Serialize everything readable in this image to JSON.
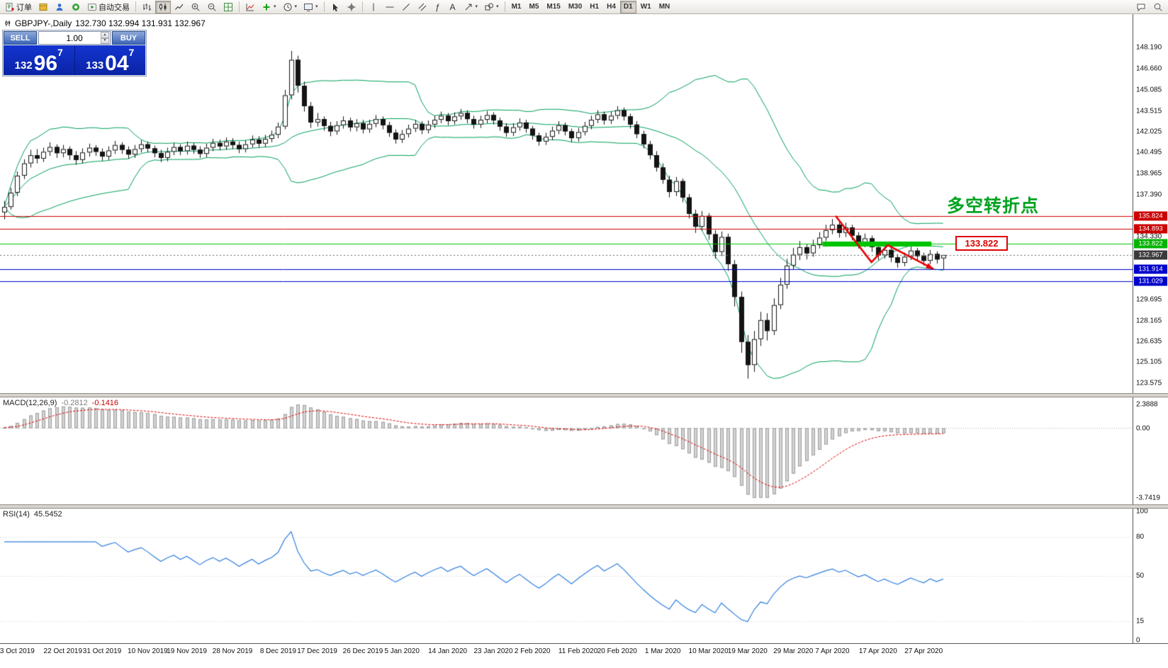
{
  "toolbar": {
    "order_label": "订单",
    "autotrade_label": "自动交易",
    "timeframes": [
      "M1",
      "M5",
      "M15",
      "M30",
      "H1",
      "H4",
      "D1",
      "W1",
      "MN"
    ],
    "active_timeframe": "D1"
  },
  "icons": {
    "caret": "▾",
    "spin_up": "▲",
    "spin_down": "▼",
    "fibo_tool": "ƒ",
    "text_tool": "A"
  },
  "chart": {
    "symbol_title": "GBPJPY-,Daily",
    "ohlc_line": "132.730 132.994 131.931 132.967"
  },
  "one_click": {
    "sell_label": "SELL",
    "buy_label": "BUY",
    "volume": "1.00",
    "bid": {
      "prefix": "132",
      "main": "96",
      "sup": "7"
    },
    "ask": {
      "prefix": "133",
      "main": "04",
      "sup": "7"
    }
  },
  "indicators": {
    "macd": {
      "label": "MACD(12,26,9)",
      "value_main": "-0.2812",
      "value_signal": "-0.1416",
      "fast": 12,
      "slow": 26,
      "signal": 9,
      "axis": [
        "2.3888",
        "0.00",
        "-3.7419"
      ]
    },
    "rsi": {
      "label": "RSI(14)",
      "value": "45.5452",
      "period": 14,
      "axis": [
        "100",
        "80",
        "50",
        "15",
        "0"
      ],
      "levels": [
        80,
        50,
        15
      ]
    }
  },
  "annotations": {
    "turning_point_text": "多空转折点",
    "turning_point_price": 135.824,
    "price_label": "133.822",
    "price_label_price": 133.822,
    "arrow_points": [
      [
        127.5,
        135.85
      ],
      [
        133,
        132.45
      ],
      [
        135.5,
        133.7
      ],
      [
        142.5,
        131.95
      ]
    ]
  },
  "chart_data": {
    "type": "candlestick",
    "symbol": "GBPJPY",
    "period": "Daily",
    "colors": {
      "bands": "#00a05a",
      "candle_up": "#ffffff",
      "candle_down": "#141414",
      "candle_border": "#141414",
      "macd_hist_fill": "#d2d2d2",
      "macd_hist_stroke": "#9e9e9e",
      "macd_signal": "#e00000",
      "rsi_line": "#2f7fde",
      "annotation": "#e60000"
    },
    "y_axis_ticks": [
      148.19,
      146.66,
      145.085,
      143.515,
      142.025,
      140.495,
      138.965,
      137.39,
      134.33,
      129.695,
      128.165,
      126.635,
      125.105,
      123.575
    ],
    "price_lines": [
      {
        "price": 135.824,
        "color": "#cc0000"
      },
      {
        "price": 134.893,
        "color": "#cc0000"
      },
      {
        "price": 133.822,
        "color": "#00c400",
        "segment": [
          125.5,
          142.2
        ],
        "tag_color": "#00b400"
      },
      {
        "price": 132.967,
        "color": "#666666",
        "dashed": true,
        "tag_color": "#3a3a3a"
      },
      {
        "price": 131.914,
        "color": "#0000cc"
      },
      {
        "price": 131.029,
        "color": "#0000cc"
      }
    ],
    "x_axis": [
      {
        "label": "3 Oct 2019",
        "bar": 2
      },
      {
        "label": "22 Oct 2019",
        "bar": 9
      },
      {
        "label": "31 Oct 2019",
        "bar": 15
      },
      {
        "label": "10 Nov 2019",
        "bar": 22
      },
      {
        "label": "19 Nov 2019",
        "bar": 28
      },
      {
        "label": "28 Nov 2019",
        "bar": 35
      },
      {
        "label": "8 Dec 2019",
        "bar": 42
      },
      {
        "label": "17 Dec 2019",
        "bar": 48
      },
      {
        "label": "26 Dec 2019",
        "bar": 55
      },
      {
        "label": "5 Jan 2020",
        "bar": 61
      },
      {
        "label": "14 Jan 2020",
        "bar": 68
      },
      {
        "label": "23 Jan 2020",
        "bar": 75
      },
      {
        "label": "2 Feb 2020",
        "bar": 81
      },
      {
        "label": "11 Feb 2020",
        "bar": 88
      },
      {
        "label": "20 Feb 2020",
        "bar": 94
      },
      {
        "label": "1 Mar 2020",
        "bar": 101
      },
      {
        "label": "10 Mar 2020",
        "bar": 108
      },
      {
        "label": "19 Mar 2020",
        "bar": 114
      },
      {
        "label": "29 Mar 2020",
        "bar": 121
      },
      {
        "label": "7 Apr 2020",
        "bar": 127
      },
      {
        "label": "17 Apr 2020",
        "bar": 134
      },
      {
        "label": "27 Apr 2020",
        "bar": 141
      }
    ],
    "candles": [
      [
        136.1,
        136.95,
        135.6,
        136.5
      ],
      [
        136.5,
        137.9,
        136.3,
        137.55
      ],
      [
        137.55,
        139.1,
        137.3,
        138.8
      ],
      [
        138.8,
        140.0,
        138.55,
        139.7
      ],
      [
        139.7,
        140.7,
        139.4,
        140.3
      ],
      [
        140.3,
        140.75,
        139.7,
        140.05
      ],
      [
        140.05,
        140.85,
        139.8,
        140.55
      ],
      [
        140.55,
        141.25,
        140.25,
        140.9
      ],
      [
        140.9,
        141.1,
        140.1,
        140.45
      ],
      [
        140.45,
        141.05,
        140.15,
        140.75
      ],
      [
        140.75,
        140.95,
        139.95,
        140.3
      ],
      [
        140.3,
        140.6,
        139.6,
        139.95
      ],
      [
        139.95,
        140.8,
        139.7,
        140.5
      ],
      [
        140.5,
        141.15,
        140.2,
        140.85
      ],
      [
        140.85,
        141.05,
        140.25,
        140.55
      ],
      [
        140.55,
        140.8,
        139.9,
        140.2
      ],
      [
        140.2,
        140.95,
        139.95,
        140.65
      ],
      [
        140.65,
        141.35,
        140.4,
        141.05
      ],
      [
        141.05,
        141.25,
        140.4,
        140.7
      ],
      [
        140.7,
        140.95,
        140.05,
        140.35
      ],
      [
        140.35,
        141.05,
        140.1,
        140.75
      ],
      [
        140.75,
        141.4,
        140.5,
        141.1
      ],
      [
        141.1,
        141.3,
        140.5,
        140.8
      ],
      [
        140.8,
        141.0,
        140.15,
        140.45
      ],
      [
        140.45,
        140.7,
        139.8,
        140.1
      ],
      [
        140.1,
        140.85,
        139.85,
        140.55
      ],
      [
        140.55,
        141.2,
        140.3,
        140.9
      ],
      [
        140.9,
        141.1,
        140.3,
        140.6
      ],
      [
        140.6,
        141.3,
        140.35,
        141.0
      ],
      [
        141.0,
        141.2,
        140.4,
        140.7
      ],
      [
        140.7,
        140.95,
        140.1,
        140.4
      ],
      [
        140.4,
        141.15,
        140.15,
        140.85
      ],
      [
        140.85,
        141.5,
        140.6,
        141.2
      ],
      [
        141.2,
        141.45,
        140.65,
        140.95
      ],
      [
        140.95,
        141.6,
        140.7,
        141.3
      ],
      [
        141.3,
        141.55,
        140.75,
        141.05
      ],
      [
        141.05,
        141.3,
        140.45,
        140.75
      ],
      [
        140.75,
        141.4,
        140.5,
        141.1
      ],
      [
        141.1,
        141.75,
        140.85,
        141.45
      ],
      [
        141.45,
        141.7,
        140.85,
        141.15
      ],
      [
        141.15,
        141.8,
        140.9,
        141.5
      ],
      [
        141.5,
        142.1,
        141.25,
        141.8
      ],
      [
        141.8,
        142.7,
        141.55,
        142.4
      ],
      [
        142.4,
        145.1,
        142.2,
        144.7
      ],
      [
        144.7,
        147.96,
        144.4,
        147.3
      ],
      [
        147.3,
        147.6,
        144.9,
        145.4
      ],
      [
        145.4,
        145.7,
        143.5,
        143.9
      ],
      [
        143.9,
        144.2,
        142.3,
        142.7
      ],
      [
        142.7,
        143.4,
        142.4,
        142.95
      ],
      [
        142.95,
        143.15,
        142.1,
        142.45
      ],
      [
        142.45,
        142.75,
        141.7,
        142.05
      ],
      [
        142.05,
        142.8,
        141.8,
        142.5
      ],
      [
        142.5,
        143.15,
        142.25,
        142.85
      ],
      [
        142.85,
        143.05,
        142.05,
        142.35
      ],
      [
        142.35,
        142.95,
        142.05,
        142.65
      ],
      [
        142.65,
        142.9,
        141.9,
        142.2
      ],
      [
        142.2,
        142.9,
        141.95,
        142.6
      ],
      [
        142.6,
        143.25,
        142.35,
        142.95
      ],
      [
        142.95,
        143.15,
        142.2,
        142.5
      ],
      [
        142.5,
        142.75,
        141.65,
        141.95
      ],
      [
        141.95,
        142.2,
        141.15,
        141.45
      ],
      [
        141.45,
        142.15,
        141.2,
        141.85
      ],
      [
        141.85,
        142.55,
        141.6,
        142.25
      ],
      [
        142.25,
        142.9,
        142.0,
        142.6
      ],
      [
        142.6,
        142.8,
        141.85,
        142.15
      ],
      [
        142.15,
        142.85,
        141.9,
        142.55
      ],
      [
        142.55,
        143.2,
        142.3,
        142.9
      ],
      [
        142.9,
        143.5,
        142.65,
        143.2
      ],
      [
        143.2,
        143.4,
        142.5,
        142.8
      ],
      [
        142.8,
        143.45,
        142.55,
        143.15
      ],
      [
        143.15,
        143.7,
        142.9,
        143.4
      ],
      [
        143.4,
        143.6,
        142.65,
        142.95
      ],
      [
        142.95,
        143.2,
        142.25,
        142.55
      ],
      [
        142.55,
        143.2,
        142.3,
        142.9
      ],
      [
        142.9,
        143.55,
        142.65,
        143.25
      ],
      [
        143.25,
        143.45,
        142.55,
        142.85
      ],
      [
        142.85,
        143.05,
        142.1,
        142.4
      ],
      [
        142.4,
        142.65,
        141.65,
        141.95
      ],
      [
        141.95,
        142.65,
        141.7,
        142.35
      ],
      [
        142.35,
        143.0,
        142.1,
        142.7
      ],
      [
        142.7,
        142.9,
        141.95,
        142.25
      ],
      [
        142.25,
        142.45,
        141.45,
        141.75
      ],
      [
        141.75,
        141.95,
        141.0,
        141.3
      ],
      [
        141.3,
        141.95,
        141.05,
        141.65
      ],
      [
        141.65,
        142.4,
        141.4,
        142.1
      ],
      [
        142.1,
        142.8,
        141.85,
        142.5
      ],
      [
        142.5,
        142.7,
        141.75,
        142.05
      ],
      [
        142.05,
        142.25,
        141.25,
        141.55
      ],
      [
        141.55,
        142.3,
        141.3,
        142.0
      ],
      [
        142.0,
        142.75,
        141.75,
        142.45
      ],
      [
        142.45,
        143.2,
        142.2,
        142.9
      ],
      [
        142.9,
        143.6,
        142.65,
        143.3
      ],
      [
        143.3,
        143.5,
        142.55,
        142.85
      ],
      [
        142.85,
        143.5,
        142.6,
        143.2
      ],
      [
        143.2,
        143.9,
        142.95,
        143.6
      ],
      [
        143.6,
        143.8,
        142.85,
        143.15
      ],
      [
        143.15,
        143.35,
        142.25,
        142.55
      ],
      [
        142.55,
        142.8,
        141.55,
        141.85
      ],
      [
        141.85,
        142.1,
        140.8,
        141.1
      ],
      [
        141.1,
        141.35,
        140.0,
        140.3
      ],
      [
        140.3,
        140.6,
        139.1,
        139.4
      ],
      [
        139.4,
        139.7,
        138.2,
        138.5
      ],
      [
        138.5,
        138.8,
        137.2,
        137.6
      ],
      [
        137.6,
        138.7,
        137.3,
        138.4
      ],
      [
        138.4,
        138.6,
        136.85,
        137.2
      ],
      [
        137.2,
        137.45,
        135.65,
        136.0
      ],
      [
        136.0,
        136.3,
        134.6,
        135.05
      ],
      [
        135.05,
        136.2,
        134.75,
        135.85
      ],
      [
        135.85,
        136.05,
        134.1,
        134.5
      ],
      [
        134.5,
        134.8,
        132.7,
        133.2
      ],
      [
        133.2,
        134.7,
        132.9,
        134.3
      ],
      [
        134.3,
        134.55,
        131.8,
        132.3
      ],
      [
        132.3,
        132.6,
        129.2,
        129.9
      ],
      [
        129.9,
        130.3,
        125.8,
        126.6
      ],
      [
        126.6,
        127.1,
        123.9,
        124.9
      ],
      [
        124.9,
        127.4,
        124.4,
        126.8
      ],
      [
        126.8,
        128.8,
        126.3,
        128.2
      ],
      [
        128.2,
        128.7,
        126.7,
        127.4
      ],
      [
        127.4,
        129.8,
        127.1,
        129.3
      ],
      [
        129.3,
        131.3,
        129.0,
        130.8
      ],
      [
        130.8,
        132.7,
        130.5,
        132.2
      ],
      [
        132.2,
        133.5,
        131.9,
        133.0
      ],
      [
        133.0,
        134.0,
        132.6,
        133.55
      ],
      [
        133.55,
        133.8,
        132.65,
        133.1
      ],
      [
        133.1,
        134.1,
        132.85,
        133.7
      ],
      [
        133.7,
        134.65,
        133.45,
        134.25
      ],
      [
        134.25,
        135.2,
        134.0,
        134.8
      ],
      [
        134.8,
        135.62,
        134.5,
        135.2
      ],
      [
        135.2,
        135.45,
        134.25,
        134.6
      ],
      [
        134.6,
        135.35,
        134.3,
        135.0
      ],
      [
        135.0,
        135.2,
        134.05,
        134.4
      ],
      [
        134.4,
        134.65,
        133.45,
        133.8
      ],
      [
        133.8,
        134.55,
        133.55,
        134.2
      ],
      [
        134.2,
        134.4,
        133.2,
        133.55
      ],
      [
        133.55,
        133.8,
        132.6,
        132.95
      ],
      [
        132.95,
        133.7,
        132.7,
        133.35
      ],
      [
        133.35,
        133.55,
        132.45,
        132.8
      ],
      [
        132.8,
        133.05,
        132.05,
        132.4
      ],
      [
        132.4,
        133.15,
        132.15,
        132.85
      ],
      [
        132.85,
        133.6,
        132.6,
        133.3
      ],
      [
        133.3,
        133.5,
        132.55,
        132.9
      ],
      [
        132.9,
        133.15,
        132.2,
        132.55
      ],
      [
        132.55,
        133.35,
        132.3,
        133.05
      ],
      [
        133.05,
        133.25,
        132.35,
        132.65
      ],
      [
        132.73,
        132.99,
        131.93,
        132.97
      ]
    ]
  }
}
